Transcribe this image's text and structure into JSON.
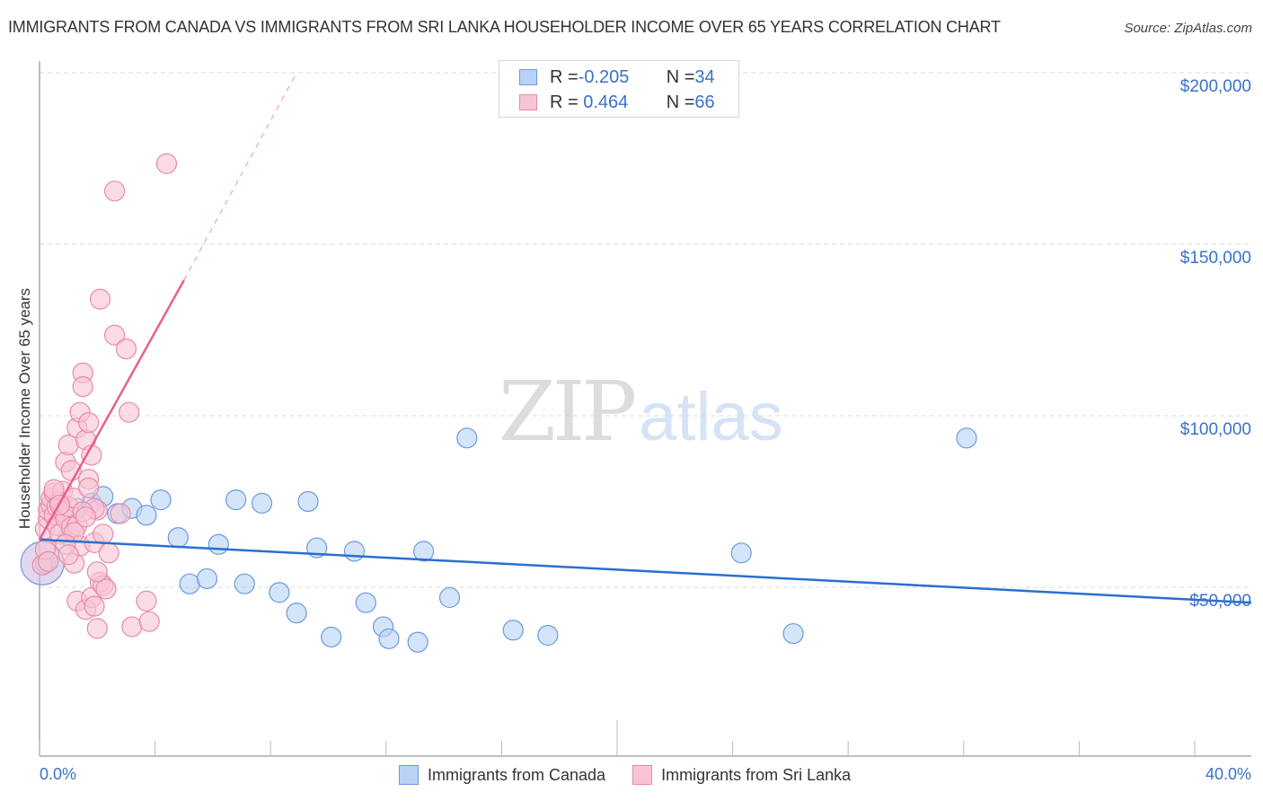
{
  "header": {
    "title": "IMMIGRANTS FROM CANADA VS IMMIGRANTS FROM SRI LANKA HOUSEHOLDER INCOME OVER 65 YEARS CORRELATION CHART",
    "source": "Source: ZipAtlas.com"
  },
  "legend": {
    "rows": [
      {
        "r_label": "R = ",
        "r_value": "-0.205",
        "n_label": "N = ",
        "n_value": "34",
        "series": "Immigrants from Canada"
      },
      {
        "r_label": "R = ",
        "r_value": " 0.464",
        "n_label": "N = ",
        "n_value": "66",
        "series": "Immigrants from Sri Lanka"
      }
    ]
  },
  "axes": {
    "ylabel": "Householder Income Over 65 years",
    "y_ticks": [
      "$200,000",
      "$150,000",
      "$100,000",
      "$50,000"
    ],
    "x_left": "0.0%",
    "x_right": "40.0%"
  },
  "bottom_legend": [
    "Immigrants from Canada",
    "Immigrants from Sri Lanka"
  ],
  "watermark": {
    "zip": "ZIP",
    "atlas": "atlas"
  },
  "colors": {
    "canada_fill": "#b8d3f5",
    "canada_stroke": "#6a9ae0",
    "canada_line": "#2a6fcf",
    "srilanka_fill": "#f8c4d4",
    "srilanka_stroke": "#e88aa8",
    "srilanka_line": "#e8608a",
    "axis_text": "#3a72c8"
  },
  "chart_data": {
    "type": "scatter",
    "title": "IMMIGRANTS FROM CANADA VS IMMIGRANTS FROM SRI LANKA HOUSEHOLDER INCOME OVER 65 YEARS CORRELATION CHART",
    "xlabel": "",
    "ylabel": "Householder Income Over 65 years",
    "xlim": [
      0,
      40
    ],
    "ylim": [
      0,
      205000
    ],
    "x_unit": "%",
    "grid": true,
    "legend_position": "top-center",
    "series": [
      {
        "name": "Immigrants from Canada",
        "R": -0.205,
        "N": 34,
        "trend": {
          "x0": 0,
          "y0": 63900,
          "x1": 42,
          "y1": 45500
        },
        "points": [
          [
            0.2,
            57000
          ],
          [
            1.3,
            73000
          ],
          [
            1.8,
            74500
          ],
          [
            2.2,
            76500
          ],
          [
            2.7,
            71500
          ],
          [
            3.2,
            73000
          ],
          [
            3.7,
            71000
          ],
          [
            4.2,
            75500
          ],
          [
            4.8,
            64500
          ],
          [
            5.2,
            51000
          ],
          [
            5.8,
            52500
          ],
          [
            6.2,
            62500
          ],
          [
            6.8,
            75500
          ],
          [
            7.1,
            51000
          ],
          [
            7.7,
            74500
          ],
          [
            8.3,
            48500
          ],
          [
            8.9,
            42500
          ],
          [
            9.3,
            75000
          ],
          [
            9.6,
            61500
          ],
          [
            10.1,
            35500
          ],
          [
            10.9,
            60500
          ],
          [
            11.3,
            45500
          ],
          [
            11.9,
            38500
          ],
          [
            12.1,
            35000
          ],
          [
            13.1,
            34000
          ],
          [
            13.3,
            60500
          ],
          [
            14.2,
            47000
          ],
          [
            14.8,
            93500
          ],
          [
            16.4,
            37500
          ],
          [
            17.6,
            36000
          ],
          [
            24.3,
            60000
          ],
          [
            26.1,
            36500
          ],
          [
            32.1,
            93500
          ],
          [
            1.0,
            65000
          ]
        ]
      },
      {
        "name": "Immigrants from Sri Lanka",
        "R": 0.464,
        "N": 66,
        "trend": {
          "x0": 0,
          "y0": 63900,
          "x1": 5.0,
          "y1": 139500,
          "dashed_to_x": 8.9,
          "dashed_to_y": 200000
        },
        "points": [
          [
            0.1,
            56500
          ],
          [
            0.2,
            61000
          ],
          [
            0.2,
            67000
          ],
          [
            0.3,
            70000
          ],
          [
            0.3,
            72500
          ],
          [
            0.4,
            74000
          ],
          [
            0.4,
            76000
          ],
          [
            0.5,
            77500
          ],
          [
            0.5,
            71000
          ],
          [
            0.6,
            68000
          ],
          [
            0.6,
            73500
          ],
          [
            0.7,
            75000
          ],
          [
            0.7,
            65500
          ],
          [
            0.8,
            78000
          ],
          [
            0.8,
            72000
          ],
          [
            0.9,
            86500
          ],
          [
            0.9,
            70000
          ],
          [
            1.0,
            91500
          ],
          [
            1.0,
            73500
          ],
          [
            1.1,
            84000
          ],
          [
            1.1,
            67500
          ],
          [
            1.2,
            76000
          ],
          [
            1.2,
            57000
          ],
          [
            1.3,
            96500
          ],
          [
            1.3,
            68000
          ],
          [
            1.3,
            46000
          ],
          [
            1.4,
            101000
          ],
          [
            1.4,
            62000
          ],
          [
            1.5,
            112500
          ],
          [
            1.5,
            108500
          ],
          [
            1.6,
            93000
          ],
          [
            1.6,
            43500
          ],
          [
            1.7,
            98000
          ],
          [
            1.7,
            81500
          ],
          [
            1.7,
            79000
          ],
          [
            1.8,
            88500
          ],
          [
            1.8,
            47000
          ],
          [
            1.9,
            63000
          ],
          [
            1.9,
            44500
          ],
          [
            2.0,
            72500
          ],
          [
            2.0,
            38000
          ],
          [
            2.1,
            134000
          ],
          [
            2.1,
            51500
          ],
          [
            2.2,
            50500
          ],
          [
            2.3,
            49500
          ],
          [
            2.4,
            60000
          ],
          [
            1.9,
            73000
          ],
          [
            1.5,
            72000
          ],
          [
            1.2,
            66000
          ],
          [
            0.9,
            62500
          ],
          [
            2.2,
            65500
          ],
          [
            1.0,
            59500
          ],
          [
            2.6,
            123500
          ],
          [
            2.8,
            71500
          ],
          [
            3.0,
            119500
          ],
          [
            3.2,
            38500
          ],
          [
            3.7,
            46000
          ],
          [
            3.8,
            40000
          ],
          [
            2.6,
            165500
          ],
          [
            4.4,
            173500
          ],
          [
            3.1,
            101000
          ],
          [
            0.5,
            78500
          ],
          [
            1.6,
            70500
          ],
          [
            0.3,
            57500
          ],
          [
            2.0,
            54500
          ],
          [
            0.7,
            74000
          ]
        ]
      }
    ]
  }
}
